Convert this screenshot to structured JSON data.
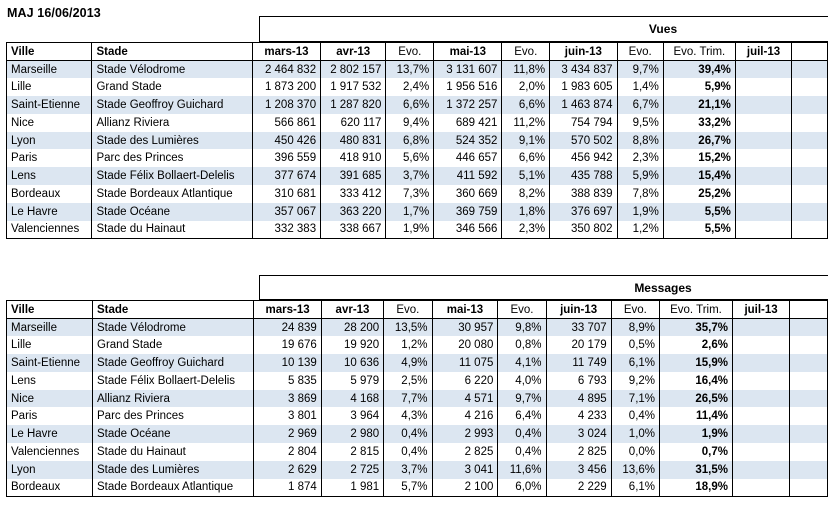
{
  "title": "MAJ 16/06/2013",
  "tables": [
    {
      "banner": "Vues",
      "columns": [
        "Ville",
        "Stade",
        "mars-13",
        "avr-13",
        "Evo.",
        "mai-13",
        "Evo.",
        "juin-13",
        "Evo.",
        "Evo. Trim.",
        "juil-13",
        ""
      ],
      "rows": [
        [
          "Marseille",
          "Stade Vélodrome",
          "2 464 832",
          "2 802 157",
          "13,7%",
          "3 131 607",
          "11,8%",
          "3 434 837",
          "9,7%",
          "39,4%",
          "",
          ""
        ],
        [
          "Lille",
          "Grand Stade",
          "1 873 200",
          "1 917 532",
          "2,4%",
          "1 956 516",
          "2,0%",
          "1 983 605",
          "1,4%",
          "5,9%",
          "",
          ""
        ],
        [
          "Saint-Etienne",
          "Stade Geoffroy Guichard",
          "1 208 370",
          "1 287 820",
          "6,6%",
          "1 372 257",
          "6,6%",
          "1 463 874",
          "6,7%",
          "21,1%",
          "",
          ""
        ],
        [
          "Nice",
          "Allianz Riviera",
          "566 861",
          "620 117",
          "9,4%",
          "689 421",
          "11,2%",
          "754 794",
          "9,5%",
          "33,2%",
          "",
          ""
        ],
        [
          "Lyon",
          "Stade des Lumières",
          "450 426",
          "480 831",
          "6,8%",
          "524 352",
          "9,1%",
          "570 502",
          "8,8%",
          "26,7%",
          "",
          ""
        ],
        [
          "Paris",
          "Parc des Princes",
          "396 559",
          "418 910",
          "5,6%",
          "446 657",
          "6,6%",
          "456 942",
          "2,3%",
          "15,2%",
          "",
          ""
        ],
        [
          "Lens",
          "Stade Félix Bollaert-Delelis",
          "377 674",
          "391 685",
          "3,7%",
          "411 592",
          "5,1%",
          "435 788",
          "5,9%",
          "15,4%",
          "",
          ""
        ],
        [
          "Bordeaux",
          "Stade Bordeaux Atlantique",
          "310 681",
          "333 412",
          "7,3%",
          "360 669",
          "8,2%",
          "388 839",
          "7,8%",
          "25,2%",
          "",
          ""
        ],
        [
          "Le Havre",
          "Stade Océane",
          "357 067",
          "363 220",
          "1,7%",
          "369 759",
          "1,8%",
          "376 697",
          "1,9%",
          "5,5%",
          "",
          ""
        ],
        [
          "Valenciennes",
          "Stade du Hainaut",
          "332 383",
          "338 667",
          "1,9%",
          "346 566",
          "2,3%",
          "350 802",
          "1,2%",
          "5,5%",
          "",
          ""
        ]
      ]
    },
    {
      "banner": "Messages",
      "columns": [
        "Ville",
        "Stade",
        "mars-13",
        "avr-13",
        "Evo.",
        "mai-13",
        "Evo.",
        "juin-13",
        "Evo.",
        "Evo. Trim.",
        "juil-13",
        ""
      ],
      "rows": [
        [
          "Marseille",
          "Stade Vélodrome",
          "24 839",
          "28 200",
          "13,5%",
          "30 957",
          "9,8%",
          "33 707",
          "8,9%",
          "35,7%",
          "",
          ""
        ],
        [
          "Lille",
          "Grand Stade",
          "19 676",
          "19 920",
          "1,2%",
          "20 080",
          "0,8%",
          "20 179",
          "0,5%",
          "2,6%",
          "",
          ""
        ],
        [
          "Saint-Etienne",
          "Stade Geoffroy Guichard",
          "10 139",
          "10 636",
          "4,9%",
          "11 075",
          "4,1%",
          "11 749",
          "6,1%",
          "15,9%",
          "",
          ""
        ],
        [
          "Lens",
          "Stade Félix Bollaert-Delelis",
          "5 835",
          "5 979",
          "2,5%",
          "6 220",
          "4,0%",
          "6 793",
          "9,2%",
          "16,4%",
          "",
          ""
        ],
        [
          "Nice",
          "Allianz Riviera",
          "3 869",
          "4 168",
          "7,7%",
          "4 571",
          "9,7%",
          "4 895",
          "7,1%",
          "26,5%",
          "",
          ""
        ],
        [
          "Paris",
          "Parc des Princes",
          "3 801",
          "3 964",
          "4,3%",
          "4 216",
          "6,4%",
          "4 233",
          "0,4%",
          "11,4%",
          "",
          ""
        ],
        [
          "Le Havre",
          "Stade Océane",
          "2 969",
          "2 980",
          "0,4%",
          "2 993",
          "0,4%",
          "3 024",
          "1,0%",
          "1,9%",
          "",
          ""
        ],
        [
          "Valenciennes",
          "Stade du Hainaut",
          "2 804",
          "2 815",
          "0,4%",
          "2 825",
          "0,4%",
          "2 825",
          "0,0%",
          "0,7%",
          "",
          ""
        ],
        [
          "Lyon",
          "Stade des Lumières",
          "2 629",
          "2 725",
          "3,7%",
          "3 041",
          "11,6%",
          "3 456",
          "13,6%",
          "31,5%",
          "",
          ""
        ],
        [
          "Bordeaux",
          "Stade Bordeaux Atlantique",
          "1 874",
          "1 981",
          "5,7%",
          "2 100",
          "6,0%",
          "2 229",
          "6,1%",
          "18,9%",
          "",
          ""
        ]
      ]
    }
  ],
  "colors": {
    "row_stripe": "#dce6f1",
    "border": "#000000",
    "background": "#ffffff",
    "text": "#000000"
  }
}
